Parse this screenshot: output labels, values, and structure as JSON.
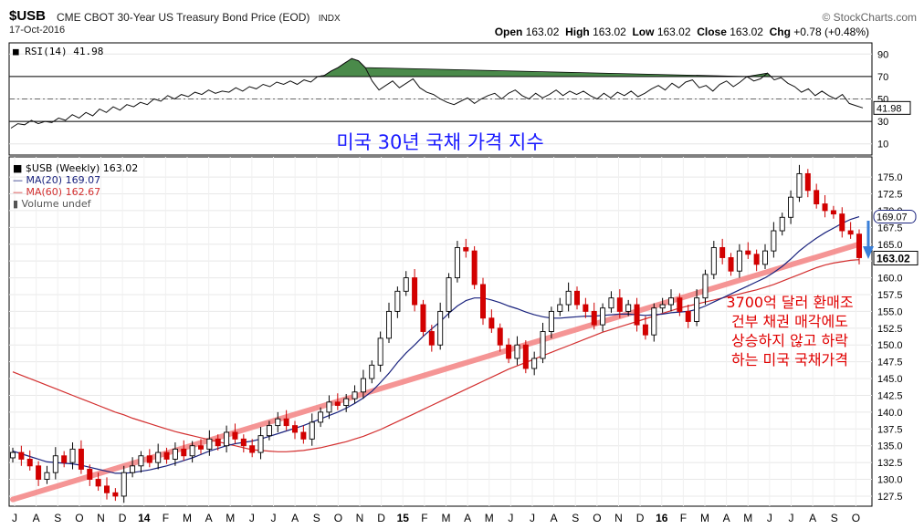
{
  "header": {
    "ticker": "$USB",
    "description": "CME CBOT 30-Year US Treasury Bond Price (EOD)",
    "exchange": "INDX",
    "date": "17-Oct-2016",
    "copyright": "© StockCharts.com",
    "open_label": "Open",
    "open": "163.02",
    "high_label": "High",
    "high": "163.02",
    "low_label": "Low",
    "low": "163.02",
    "close_label": "Close",
    "close": "163.02",
    "chg_label": "Chg",
    "chg": "+0.78 (+0.48%)"
  },
  "chart_data": [
    {
      "type": "line",
      "panel": "rsi",
      "legend": "RSI(14) 41.98",
      "last_value_label": "41.98",
      "ylim": [
        0,
        100
      ],
      "y_ticks": [
        10,
        30,
        50,
        70,
        90
      ],
      "reference_lines": [
        30,
        70
      ],
      "overlay_title": "미국 30년 국채 가격 지수",
      "values": [
        24,
        28,
        27,
        31,
        28,
        30,
        29,
        33,
        31,
        36,
        33,
        38,
        35,
        41,
        38,
        43,
        40,
        45,
        43,
        47,
        45,
        50,
        48,
        53,
        50,
        54,
        52,
        56,
        54,
        58,
        55,
        57,
        56,
        60,
        57,
        61,
        59,
        63,
        61,
        65,
        63,
        66,
        63,
        67,
        65,
        70,
        71,
        75,
        78,
        82,
        86,
        84,
        78,
        66,
        58,
        62,
        66,
        60,
        64,
        68,
        60,
        56,
        54,
        50,
        47,
        45,
        48,
        51,
        46,
        50,
        53,
        55,
        50,
        55,
        58,
        53,
        50,
        55,
        51,
        54,
        58,
        53,
        57,
        54,
        57,
        53,
        50,
        55,
        51,
        56,
        53,
        57,
        52,
        55,
        59,
        62,
        58,
        64,
        60,
        65,
        67,
        60,
        62,
        57,
        63,
        66,
        61,
        65,
        70,
        66,
        68,
        73,
        67,
        69,
        64,
        61,
        56,
        59,
        53,
        57,
        53,
        50,
        54,
        46,
        44,
        42
      ]
    },
    {
      "type": "candlestick",
      "panel": "price",
      "legend": [
        {
          "name": "$USB (Weekly) 163.02",
          "color": "#000000"
        },
        {
          "name": "MA(20) 169.07",
          "color": "#1a237e"
        },
        {
          "name": "MA(60) 162.67",
          "color": "#d32f2f"
        },
        {
          "name": "Volume undef",
          "color": "#555555"
        }
      ],
      "ylim": [
        126,
        178
      ],
      "y_ticks": [
        127.5,
        130.0,
        132.5,
        135.0,
        137.5,
        140.0,
        142.5,
        145.0,
        147.5,
        150.0,
        152.5,
        155.0,
        157.5,
        160.0,
        162.5,
        165.0,
        167.5,
        170.0,
        172.5,
        175.0
      ],
      "x_labels": [
        "J",
        "A",
        "S",
        "O",
        "N",
        "D",
        "14",
        "F",
        "M",
        "A",
        "M",
        "J",
        "J",
        "A",
        "S",
        "O",
        "N",
        "D",
        "15",
        "F",
        "M",
        "A",
        "M",
        "J",
        "J",
        "A",
        "S",
        "O",
        "N",
        "D",
        "16",
        "F",
        "M",
        "A",
        "M",
        "J",
        "J",
        "A",
        "S",
        "O"
      ],
      "closes": [
        134.0,
        133.0,
        132.0,
        130.0,
        131.0,
        133.5,
        132.5,
        134.5,
        131.5,
        130.0,
        129.0,
        128.0,
        127.5,
        131.0,
        132.0,
        133.5,
        132.5,
        134.0,
        133.0,
        134.5,
        133.5,
        135.0,
        134.5,
        136.0,
        135.0,
        137.0,
        136.0,
        135.0,
        134.0,
        136.5,
        138.0,
        139.0,
        138.0,
        137.0,
        136.0,
        138.5,
        140.0,
        141.5,
        141.0,
        142.0,
        143.0,
        145.0,
        147.0,
        151.0,
        155.0,
        158.0,
        160.0,
        156.0,
        152.0,
        150.0,
        155.0,
        160.0,
        164.5,
        164.0,
        159.0,
        154.0,
        152.5,
        150.0,
        148.0,
        150.0,
        146.5,
        148.0,
        152.0,
        155.0,
        156.0,
        158.0,
        156.0,
        155.0,
        153.0,
        155.5,
        157.0,
        155.0,
        156.0,
        153.0,
        151.5,
        155.5,
        156.0,
        157.0,
        155.0,
        153.5,
        157.0,
        160.5,
        164.5,
        163.0,
        161.0,
        164.0,
        163.5,
        162.0,
        164.0,
        167.0,
        169.0,
        172.0,
        175.5,
        173.0,
        171.0,
        170.0,
        169.5,
        167.0,
        166.5,
        163.0
      ],
      "ma20": [
        134.2,
        133.8,
        133.4,
        133.0,
        132.6,
        132.5,
        132.4,
        132.3,
        132.1,
        131.8,
        131.5,
        131.2,
        130.9,
        130.9,
        131.0,
        131.2,
        131.4,
        131.7,
        132.0,
        132.4,
        132.8,
        133.2,
        133.7,
        134.2,
        134.6,
        135.0,
        135.3,
        135.5,
        135.7,
        136.0,
        136.4,
        136.8,
        137.2,
        137.6,
        138.0,
        138.5,
        139.0,
        139.5,
        140.0,
        140.6,
        141.3,
        142.1,
        143.1,
        144.4,
        145.8,
        147.4,
        148.8,
        150.0,
        151.3,
        152.4,
        153.5,
        154.7,
        155.8,
        156.6,
        157.0,
        157.0,
        156.7,
        156.3,
        155.8,
        155.4,
        154.9,
        154.5,
        154.2,
        154.0,
        154.0,
        154.1,
        154.2,
        154.3,
        154.3,
        154.4,
        154.5,
        154.6,
        154.6,
        154.5,
        154.4,
        154.5,
        154.6,
        154.8,
        154.9,
        155.0,
        155.3,
        155.8,
        156.4,
        157.0,
        157.6,
        158.2,
        158.8,
        159.4,
        160.0,
        160.8,
        161.7,
        162.8,
        164.0,
        165.0,
        165.9,
        166.7,
        167.4,
        168.1,
        168.7,
        169.1
      ],
      "ma60": [
        146.0,
        145.5,
        145.0,
        144.5,
        144.0,
        143.5,
        143.0,
        142.5,
        142.0,
        141.5,
        141.0,
        140.5,
        140.0,
        139.6,
        139.1,
        138.7,
        138.3,
        137.9,
        137.5,
        137.1,
        136.8,
        136.5,
        136.2,
        135.9,
        135.6,
        135.3,
        135.0,
        134.7,
        134.4,
        134.3,
        134.2,
        134.1,
        134.1,
        134.2,
        134.3,
        134.5,
        134.7,
        135.0,
        135.3,
        135.6,
        136.0,
        136.4,
        136.9,
        137.4,
        138.0,
        138.6,
        139.2,
        139.8,
        140.4,
        141.0,
        141.6,
        142.2,
        142.8,
        143.4,
        144.0,
        144.6,
        145.2,
        145.8,
        146.4,
        146.9,
        147.4,
        147.9,
        148.4,
        148.9,
        149.4,
        149.9,
        150.4,
        150.9,
        151.4,
        151.9,
        152.3,
        152.7,
        153.1,
        153.5,
        153.9,
        154.3,
        154.7,
        155.1,
        155.5,
        155.8,
        156.1,
        156.4,
        156.7,
        157.0,
        157.3,
        157.6,
        157.9,
        158.2,
        158.6,
        159.0,
        159.5,
        160.0,
        160.5,
        161.0,
        161.5,
        161.9,
        162.2,
        162.4,
        162.6,
        162.7
      ],
      "trendline": {
        "from": [
          0,
          127.0
        ],
        "to": [
          99,
          165.0
        ]
      },
      "last_price_label": "163.02",
      "ma20_label": "169.07",
      "annotation": [
        "3700억 달러 환매조",
        "건부 채권 매각에도",
        "상승하지 않고 하락",
        "하는 미국 국채가격"
      ]
    }
  ]
}
